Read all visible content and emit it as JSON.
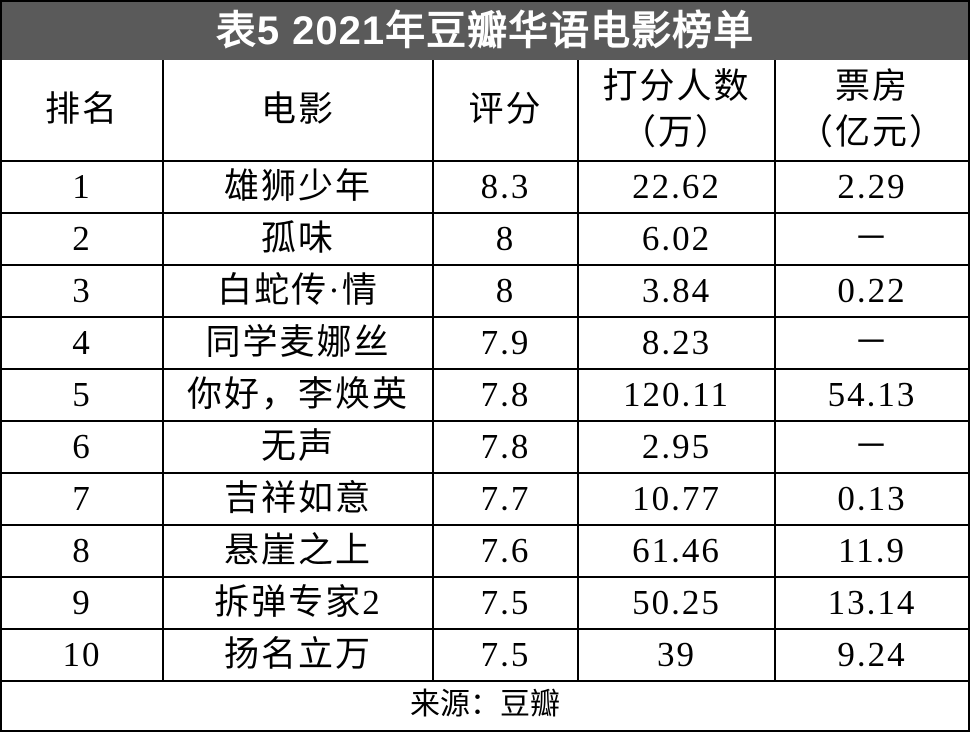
{
  "title": "表5 2021年豆瓣华语电影榜单",
  "table": {
    "header": [
      [
        "排名"
      ],
      [
        "电影"
      ],
      [
        "评分"
      ],
      [
        "打分人数",
        "（万）"
      ],
      [
        "票房",
        "（亿元）"
      ]
    ],
    "rows": [
      [
        "1",
        "雄狮少年",
        "8.3",
        "22.62",
        "2.29"
      ],
      [
        "2",
        "孤味",
        "8",
        "6.02",
        "－"
      ],
      [
        "3",
        "白蛇传·情",
        "8",
        "3.84",
        "0.22"
      ],
      [
        "4",
        "同学麦娜丝",
        "7.9",
        "8.23",
        "－"
      ],
      [
        "5",
        "你好，李焕英",
        "7.8",
        "120.11",
        "54.13"
      ],
      [
        "6",
        "无声",
        "7.8",
        "2.95",
        "－"
      ],
      [
        "7",
        "吉祥如意",
        "7.7",
        "10.77",
        "0.13"
      ],
      [
        "8",
        "悬崖之上",
        "7.6",
        "61.46",
        "11.9"
      ],
      [
        "9",
        "拆弹专家2",
        "7.5",
        "50.25",
        "13.14"
      ],
      [
        "10",
        "扬名立万",
        "7.5",
        "39",
        "9.24"
      ]
    ]
  },
  "source": "来源：豆瓣"
}
